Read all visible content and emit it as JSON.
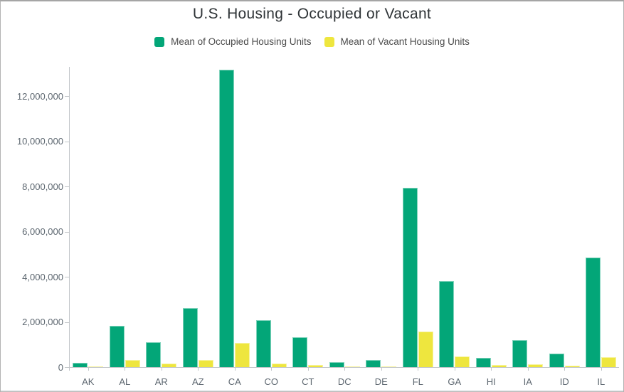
{
  "title": "U.S. Housing - Occupied or Vacant",
  "legend": {
    "items": [
      {
        "label": "Mean of Occupied Housing Units",
        "series": "occupied"
      },
      {
        "label": "Mean of Vacant Housing Units",
        "series": "vacant"
      }
    ]
  },
  "colors": {
    "occupied": "#03a678",
    "vacant": "#eee63e",
    "axis_line": "#c2c6c9",
    "tick_label": "#5d6770",
    "title_text": "#2f3437",
    "legend_text": "#4a4a4a"
  },
  "chart_data": {
    "type": "bar",
    "title": "U.S. Housing - Occupied or Vacant",
    "categories": [
      "AK",
      "AL",
      "AR",
      "AZ",
      "CA",
      "CO",
      "CT",
      "DC",
      "DE",
      "FL",
      "GA",
      "HI",
      "IA",
      "ID",
      "IL"
    ],
    "series": [
      {
        "name": "Mean of Occupied Housing Units",
        "color": "#03a678",
        "values": [
          200000,
          1840000,
          1110000,
          2600000,
          13150000,
          2075000,
          1330000,
          230000,
          300000,
          7930000,
          3800000,
          420000,
          1210000,
          590000,
          4860000
        ]
      },
      {
        "name": "Mean of Vacant Housing Units",
        "color": "#eee63e",
        "values": [
          40000,
          320000,
          155000,
          330000,
          1060000,
          170000,
          105000,
          30000,
          45000,
          1580000,
          470000,
          80000,
          120000,
          55000,
          450000
        ]
      }
    ],
    "xlabel": "",
    "ylabel": "",
    "ylim": [
      0,
      13400000
    ],
    "yticks": [
      0,
      2000000,
      4000000,
      6000000,
      8000000,
      10000000,
      12000000
    ],
    "grid": false,
    "legend_position": "top"
  }
}
